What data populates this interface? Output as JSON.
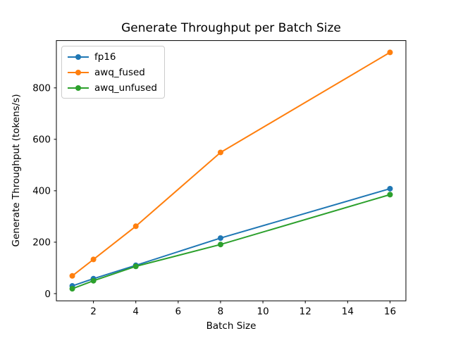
{
  "chart_data": {
    "type": "line",
    "title": "Generate Throughput per Batch Size",
    "xlabel": "Batch Size",
    "ylabel": "Generate Throughput (tokens/s)",
    "x": [
      1,
      2,
      4,
      8,
      16
    ],
    "series": [
      {
        "name": "fp16",
        "color": "#1f77b4",
        "values": [
          30,
          58,
          110,
          216,
          408
        ]
      },
      {
        "name": "awq_fused",
        "color": "#ff7f0e",
        "values": [
          69,
          133,
          262,
          549,
          938
        ]
      },
      {
        "name": "awq_unfused",
        "color": "#2ca02c",
        "values": [
          19,
          50,
          106,
          191,
          385
        ]
      }
    ],
    "xlim": [
      0.25,
      16.75
    ],
    "ylim": [
      -28,
      984
    ],
    "xticks": [
      2,
      4,
      6,
      8,
      10,
      12,
      14,
      16
    ],
    "yticks": [
      0,
      200,
      400,
      600,
      800
    ],
    "grid": false,
    "legend_position": "upper left",
    "marker": "circle",
    "line_width": 2,
    "marker_radius": 4,
    "axis_color": "#000000",
    "legend_border_color": "#cccccc",
    "background_color": "#ffffff"
  }
}
